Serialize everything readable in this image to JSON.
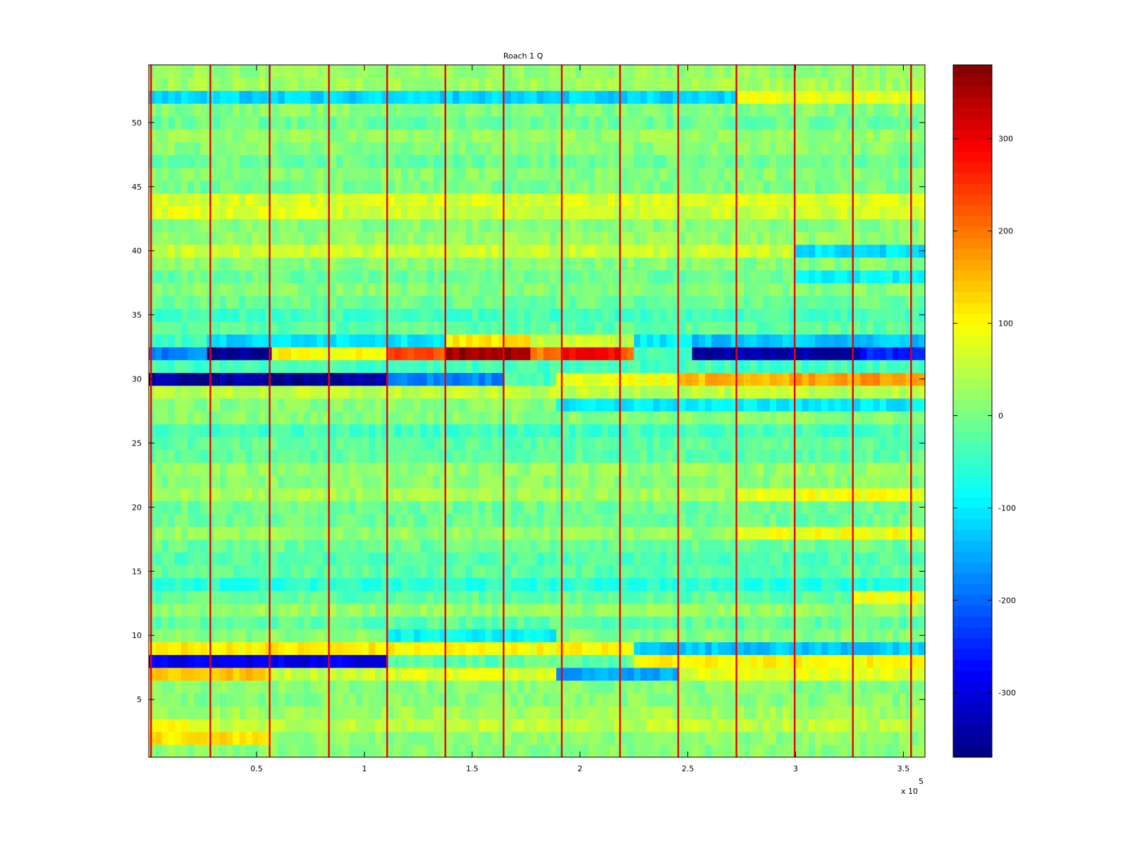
{
  "chart_data": {
    "type": "heatmap",
    "title": "Roach 1 Q",
    "xlabel": "",
    "ylabel": "",
    "x_multiplier_label": {
      "base": "x 10",
      "exponent": "5"
    },
    "xlim": [
      0,
      3.6
    ],
    "ylim": [
      0.5,
      54.5
    ],
    "x_ticks": [
      {
        "value": 0.5,
        "label": "0.5"
      },
      {
        "value": 1,
        "label": "1"
      },
      {
        "value": 1.5,
        "label": "1.5"
      },
      {
        "value": 2,
        "label": "2"
      },
      {
        "value": 2.5,
        "label": "2.5"
      },
      {
        "value": 3,
        "label": "3"
      },
      {
        "value": 3.5,
        "label": "3.5"
      }
    ],
    "y_ticks": [
      {
        "value": 5,
        "label": "5"
      },
      {
        "value": 10,
        "label": "10"
      },
      {
        "value": 15,
        "label": "15"
      },
      {
        "value": 20,
        "label": "20"
      },
      {
        "value": 25,
        "label": "25"
      },
      {
        "value": 30,
        "label": "30"
      },
      {
        "value": 35,
        "label": "35"
      },
      {
        "value": 40,
        "label": "40"
      },
      {
        "value": 45,
        "label": "45"
      },
      {
        "value": 50,
        "label": "50"
      }
    ],
    "colorbar": {
      "colormap": "jet",
      "clim": [
        -370,
        380
      ],
      "ticks": [
        {
          "value": 300,
          "label": "300"
        },
        {
          "value": 200,
          "label": "200"
        },
        {
          "value": 100,
          "label": "100"
        },
        {
          "value": 0,
          "label": "0"
        },
        {
          "value": -100,
          "label": "-100"
        },
        {
          "value": -200,
          "label": "-200"
        },
        {
          "value": -300,
          "label": "-300"
        }
      ]
    },
    "rows": 54,
    "row_base": [
      10,
      15,
      50,
      30,
      10,
      10,
      80,
      -300,
      100,
      10,
      -20,
      20,
      -20,
      -60,
      -20,
      -30,
      -10,
      20,
      -10,
      -10,
      30,
      10,
      20,
      -20,
      -20,
      -40,
      10,
      10,
      50,
      -350,
      -40,
      -250,
      -100,
      -20,
      -40,
      -10,
      10,
      -10,
      10,
      60,
      20,
      10,
      60,
      70,
      0,
      10,
      -10,
      10,
      20,
      -10,
      10,
      -120,
      30,
      20
    ],
    "segments": [
      {
        "row": 30,
        "from": 0.0,
        "to": 1.1,
        "value": -350
      },
      {
        "row": 30,
        "from": 1.1,
        "to": 1.65,
        "value": -180
      },
      {
        "row": 30,
        "from": 1.65,
        "to": 1.9,
        "value": -40
      },
      {
        "row": 30,
        "from": 1.9,
        "to": 2.45,
        "value": 90
      },
      {
        "row": 30,
        "from": 2.45,
        "to": 3.0,
        "value": 150
      },
      {
        "row": 30,
        "from": 3.0,
        "to": 3.6,
        "value": 170
      },
      {
        "row": 32,
        "from": 0.0,
        "to": 0.28,
        "value": -180
      },
      {
        "row": 32,
        "from": 0.28,
        "to": 0.57,
        "value": -360
      },
      {
        "row": 32,
        "from": 0.57,
        "to": 1.1,
        "value": 100
      },
      {
        "row": 32,
        "from": 1.1,
        "to": 1.38,
        "value": 230
      },
      {
        "row": 32,
        "from": 1.38,
        "to": 1.78,
        "value": 360
      },
      {
        "row": 32,
        "from": 1.78,
        "to": 1.92,
        "value": 200
      },
      {
        "row": 32,
        "from": 1.92,
        "to": 2.18,
        "value": 290
      },
      {
        "row": 32,
        "from": 2.18,
        "to": 2.25,
        "value": 220
      },
      {
        "row": 32,
        "from": 2.25,
        "to": 2.52,
        "value": -40
      },
      {
        "row": 32,
        "from": 2.52,
        "to": 3.3,
        "value": -340
      },
      {
        "row": 32,
        "from": 3.3,
        "to": 3.6,
        "value": -250
      },
      {
        "row": 33,
        "from": 0.0,
        "to": 0.28,
        "value": -40
      },
      {
        "row": 33,
        "from": 0.28,
        "to": 0.57,
        "value": -120
      },
      {
        "row": 33,
        "from": 1.38,
        "to": 1.78,
        "value": 110
      },
      {
        "row": 33,
        "from": 1.78,
        "to": 2.25,
        "value": 60
      },
      {
        "row": 33,
        "from": 2.52,
        "to": 3.6,
        "value": -130
      },
      {
        "row": 8,
        "from": 0.0,
        "to": 1.1,
        "value": -290
      },
      {
        "row": 8,
        "from": 1.1,
        "to": 2.25,
        "value": -20
      },
      {
        "row": 8,
        "from": 2.25,
        "to": 3.6,
        "value": 100
      },
      {
        "row": 7,
        "from": 0.0,
        "to": 0.57,
        "value": 140
      },
      {
        "row": 7,
        "from": 0.57,
        "to": 1.1,
        "value": 60
      },
      {
        "row": 7,
        "from": 1.9,
        "to": 2.45,
        "value": -150
      },
      {
        "row": 9,
        "from": 0.0,
        "to": 1.1,
        "value": 110
      },
      {
        "row": 9,
        "from": 2.25,
        "to": 3.6,
        "value": -130
      },
      {
        "row": 10,
        "from": 1.1,
        "to": 1.9,
        "value": -90
      },
      {
        "row": 2,
        "from": 0.0,
        "to": 0.57,
        "value": 120
      },
      {
        "row": 3,
        "from": 0.0,
        "to": 0.28,
        "value": 90
      },
      {
        "row": 21,
        "from": 2.73,
        "to": 3.6,
        "value": 90
      },
      {
        "row": 18,
        "from": 2.73,
        "to": 3.6,
        "value": 90
      },
      {
        "row": 13,
        "from": 3.27,
        "to": 3.6,
        "value": 90
      },
      {
        "row": 28,
        "from": 1.9,
        "to": 3.6,
        "value": -100
      },
      {
        "row": 52,
        "from": 0.0,
        "to": 0.85,
        "value": -120
      },
      {
        "row": 52,
        "from": 2.73,
        "to": 3.6,
        "value": 80
      },
      {
        "row": 40,
        "from": 3.0,
        "to": 3.6,
        "value": -110
      },
      {
        "row": 38,
        "from": 3.0,
        "to": 3.6,
        "value": -90
      },
      {
        "row": 43,
        "from": 0.0,
        "to": 0.85,
        "value": 80
      }
    ],
    "vertical_lines_x": [
      0.01,
      0.285,
      0.56,
      0.835,
      1.105,
      1.375,
      1.645,
      1.915,
      2.185,
      2.455,
      2.725,
      2.995,
      3.265,
      3.535
    ]
  }
}
